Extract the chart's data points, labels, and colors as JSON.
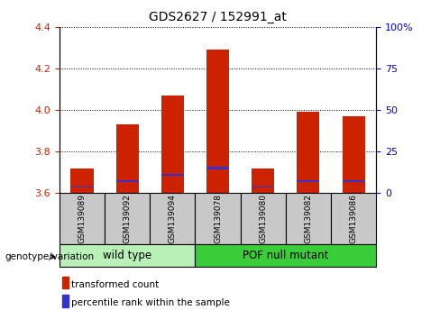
{
  "title": "GDS2627 / 152991_at",
  "samples": [
    "GSM139089",
    "GSM139092",
    "GSM139094",
    "GSM139078",
    "GSM139080",
    "GSM139082",
    "GSM139086"
  ],
  "red_values": [
    3.72,
    3.93,
    4.07,
    4.29,
    3.72,
    3.99,
    3.97
  ],
  "blue_heights": [
    0.008,
    0.008,
    0.008,
    0.01,
    0.008,
    0.008,
    0.008
  ],
  "blue_bottoms": [
    3.625,
    3.655,
    3.685,
    3.715,
    3.625,
    3.655,
    3.655
  ],
  "ymin": 3.6,
  "ymax": 4.4,
  "y2min": 0,
  "y2max": 100,
  "yticks_left": [
    3.6,
    3.8,
    4.0,
    4.2,
    4.4
  ],
  "yticks_right": [
    0,
    25,
    50,
    75,
    100
  ],
  "ytick_labels_right": [
    "0",
    "25",
    "50",
    "75",
    "100%"
  ],
  "groups": [
    {
      "label": "wild type",
      "n_samples": 3,
      "color": "#90EE90"
    },
    {
      "label": "POF null mutant",
      "n_samples": 4,
      "color": "#3ACD3A"
    }
  ],
  "bar_width": 0.5,
  "red_color": "#CC2200",
  "blue_color": "#3333CC",
  "axis_label_color_left": "#CC2200",
  "axis_label_color_right": "#0000CC",
  "genotype_label": "genotype/variation",
  "legend_items": [
    {
      "label": "transformed count",
      "color": "#CC2200"
    },
    {
      "label": "percentile rank within the sample",
      "color": "#3333CC"
    }
  ],
  "sample_bg_color": "#C8C8C8",
  "wt_bg_color": "#B8F0B8",
  "pof_bg_color": "#3ACD3A"
}
